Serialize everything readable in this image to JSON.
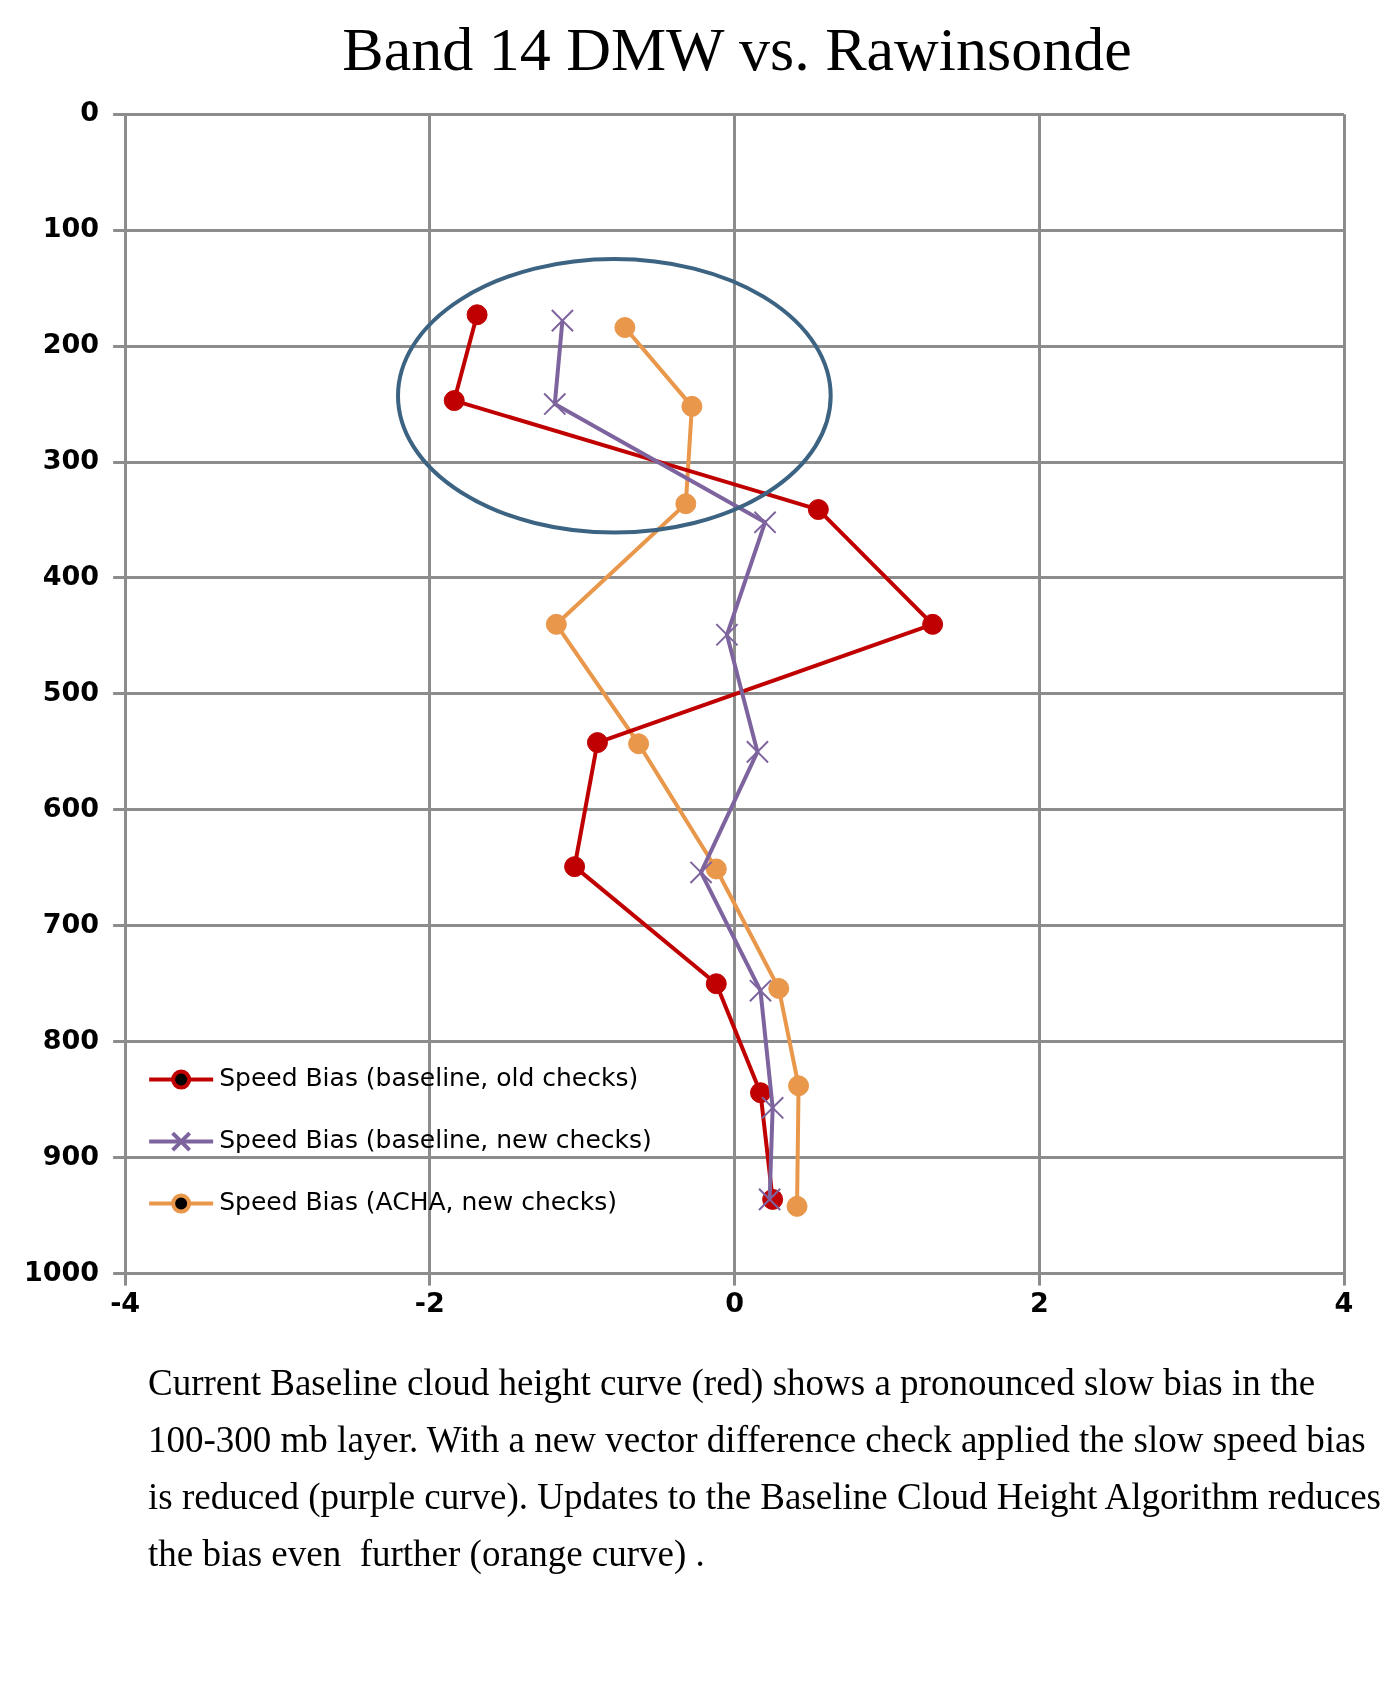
{
  "chart_data": {
    "type": "line",
    "title": "Band 14 DMW vs. Rawinsonde",
    "xlim": [
      -4,
      4
    ],
    "xticks": [
      -4,
      -2,
      0,
      2,
      4
    ],
    "ylim": [
      1000,
      0
    ],
    "yticks": [
      0,
      100,
      200,
      300,
      400,
      500,
      600,
      700,
      800,
      900,
      1000
    ],
    "grid": true,
    "legend": "bottom left",
    "line_style": "solid",
    "series": [
      {
        "name": "Speed Bias (baseline, old checks)",
        "color": "#c00000",
        "marker": "circle",
        "x": [
          -1.69,
          -1.84,
          0.55,
          1.3,
          -0.9,
          -1.05,
          -0.12,
          0.17,
          0.25
        ],
        "values": [
          173,
          247,
          341,
          440,
          542,
          649,
          750,
          844,
          936
        ]
      },
      {
        "name": "Speed Bias (baseline, new checks)",
        "color": "#7e649e",
        "marker": "cross",
        "x": [
          -1.13,
          -1.18,
          0.2,
          -0.05,
          0.15,
          -0.22,
          0.17,
          0.25,
          0.23
        ],
        "values": [
          178,
          250,
          352,
          449,
          550,
          654,
          756,
          857,
          936
        ]
      },
      {
        "name": "Speed Bias (ACHA, new checks)",
        "color": "#e9974b",
        "marker": "circle",
        "x": [
          -0.72,
          -0.28,
          -0.32,
          -1.17,
          -0.63,
          -0.12,
          0.29,
          0.42,
          0.41
        ],
        "values": [
          184,
          252,
          336,
          440,
          543,
          651,
          754,
          838,
          942
        ]
      }
    ],
    "annotations": [
      "Current Baseline cloud height curve (red) shows a pronounced slow bias in the 100-300 mb layer. With a new vector difference check applied the slow speed bias is reduced (purple curve). Updates to the Baseline Cloud Height Algorithm reduces the bias even  further (orange curve) ."
    ]
  }
}
